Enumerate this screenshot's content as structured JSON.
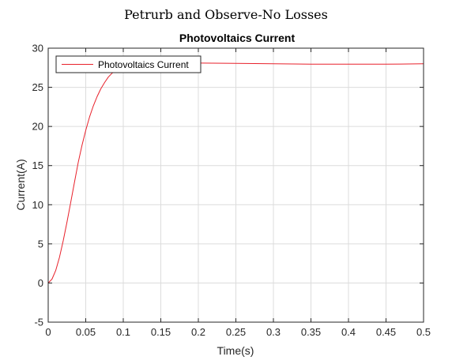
{
  "chart_data": {
    "type": "line",
    "suptitle": "Petrurb and Observe-No Losses",
    "title": "Photovoltaics Current",
    "xlabel": "Time(s)",
    "ylabel": "Current(A)",
    "xlim": [
      0,
      0.5
    ],
    "ylim": [
      -5,
      30
    ],
    "xticks": [
      0,
      0.05,
      0.1,
      0.15,
      0.2,
      0.25,
      0.3,
      0.35,
      0.4,
      0.45,
      0.5
    ],
    "xtick_labels": [
      "0",
      "0.05",
      "0.1",
      "0.15",
      "0.2",
      "0.25",
      "0.3",
      "0.35",
      "0.4",
      "0.45",
      "0.5"
    ],
    "yticks": [
      -5,
      0,
      5,
      10,
      15,
      20,
      25,
      30
    ],
    "ytick_labels": [
      "-5",
      "0",
      "5",
      "10",
      "15",
      "20",
      "25",
      "30"
    ],
    "grid": true,
    "legend_position": "top-left",
    "series": [
      {
        "name": "Photovoltaics Current",
        "color": "#e8212b",
        "x": [
          0,
          0.005,
          0.01,
          0.015,
          0.02,
          0.025,
          0.03,
          0.035,
          0.04,
          0.045,
          0.05,
          0.055,
          0.06,
          0.065,
          0.07,
          0.075,
          0.08,
          0.085,
          0.09,
          0.095,
          0.1,
          0.105,
          0.11,
          0.12,
          0.13,
          0.14,
          0.15,
          0.175,
          0.2,
          0.25,
          0.3,
          0.35,
          0.4,
          0.45,
          0.5
        ],
        "y": [
          0,
          0.5,
          1.6,
          3.3,
          5.4,
          7.8,
          10.3,
          12.9,
          15.4,
          17.6,
          19.5,
          21.2,
          22.6,
          23.8,
          24.8,
          25.6,
          26.3,
          26.8,
          27.2,
          27.5,
          27.7,
          27.85,
          27.95,
          28.05,
          28.1,
          28.1,
          28.15,
          28.15,
          28.1,
          28.05,
          28.0,
          27.95,
          27.95,
          27.95,
          28.0
        ]
      }
    ]
  }
}
